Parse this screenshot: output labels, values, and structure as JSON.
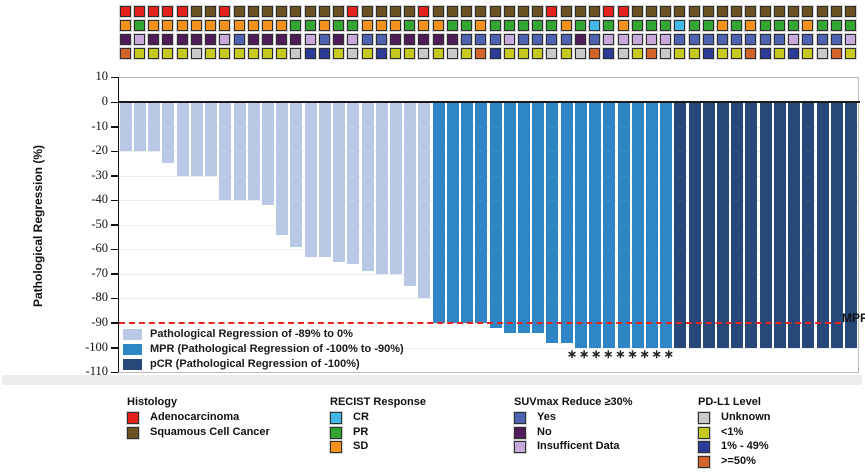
{
  "figure": {
    "y_axis_title": "Pathological Regression (%)",
    "mpr_line_label": "MPR",
    "asterisk_symbol": "∗",
    "asterisk_count": 9
  },
  "tracks": {
    "rows": [
      {
        "label": "Histology",
        "cells": "AAAAASSASSSSSSSSASSSSASSSSSSSSASSSAASSSSSSSSSSSSSSSS",
        "colors": {
          "A": "#E3201B",
          "S": "#6C5223"
        },
        "code_meaning": {
          "A": "Adenocarcinoma",
          "S": "Squamous Cell Cancer"
        }
      },
      {
        "label": "RECIST Response",
        "cells": "SPSSSSSSSSSSPPSPPSSSPSSPPSPPPPPSPCPSPPPCPPSPSPPPSPPP",
        "colors": {
          "C": "#41B8E8",
          "P": "#33A532",
          "S": "#F5921E"
        },
        "code_meaning": {
          "C": "CR",
          "P": "PR",
          "S": "SD"
        }
      },
      {
        "label": "SUVmax Reduce ≥30%",
        "cells": "NINNNNNIYNNNNIYNIYYNNNNNYYYIYYYYNYIIIIIYYYYYYYYIYYYI",
        "colors": {
          "Y": "#4F63B5",
          "N": "#4F1B59",
          "I": "#C7AADB"
        },
        "code_meaning": {
          "Y": "Yes",
          "N": "No",
          "I": "Insufficent Data"
        }
      },
      {
        "label": "PD-L1 Level",
        "cells": "HLLLLULLLLLLUMMLULMLLULULHMLLLULUHMULHULLMLLHMLMLUHL",
        "colors": {
          "U": "#C9C9C9",
          "L": "#C5C81F",
          "M": "#2B3B97",
          "H": "#D2642B"
        },
        "code_meaning": {
          "U": "Unknown",
          "L": "<1%",
          "M": "1% - 49%",
          "H": ">=50%"
        }
      }
    ]
  },
  "chart_data": {
    "type": "bar",
    "title": "",
    "xlabel": "",
    "ylabel": "Pathological Regression (%)",
    "ylim": [
      -110,
      10
    ],
    "yticks": [
      10,
      0,
      -10,
      -20,
      -30,
      -40,
      -50,
      -60,
      -70,
      -80,
      -90,
      -100,
      -110
    ],
    "grid": true,
    "n_patients": 52,
    "values": [
      -20,
      -20,
      -20,
      -25,
      -30,
      -30,
      -30,
      -40,
      -40,
      -40,
      -42,
      -54,
      -59,
      -63,
      -63,
      -65,
      -66,
      -69,
      -70,
      -70,
      -75,
      -80,
      -90,
      -90,
      -90,
      -90,
      -92,
      -94,
      -94,
      -94,
      -98,
      -98,
      -100,
      -100,
      -100,
      -100,
      -100,
      -100,
      -100,
      -100,
      -100,
      -100,
      -100,
      -100,
      -100,
      -100,
      -100,
      -100,
      -100,
      -100,
      -100,
      -100
    ],
    "group_spans": [
      {
        "group": "PR89",
        "count": 22
      },
      {
        "group": "MPR",
        "count": 17
      },
      {
        "group": "pCR",
        "count": 13
      }
    ],
    "group_colors": {
      "PR89": "#B9C9E5",
      "MPR": "#2E86C6",
      "pCR": "#274878"
    },
    "reference_line": {
      "value": -90,
      "label": "MPR",
      "color": "#E8251F"
    },
    "legend_position": "inside-bottom-left",
    "plot_legend": [
      {
        "group": "PR89",
        "label": "Pathological Regression of -89% to 0%"
      },
      {
        "group": "MPR",
        "label": "MPR (Pathological Regression of -100% to -90%)"
      },
      {
        "group": "pCR",
        "label": "pCR (Pathological Regression of -100%)"
      }
    ]
  },
  "legends": [
    {
      "title": "Histology",
      "items": [
        {
          "label": "Adenocarcinoma",
          "color": "#E3201B"
        },
        {
          "label": "Squamous Cell Cancer",
          "color": "#6C5223"
        }
      ]
    },
    {
      "title": "RECIST Response",
      "items": [
        {
          "label": "CR",
          "color": "#41B8E8"
        },
        {
          "label": "PR",
          "color": "#33A532"
        },
        {
          "label": "SD",
          "color": "#F5921E"
        }
      ]
    },
    {
      "title": "SUVmax Reduce ≥30%",
      "items": [
        {
          "label": "Yes",
          "color": "#4F63B5"
        },
        {
          "label": "No",
          "color": "#4F1B59"
        },
        {
          "label": "Insufficent Data",
          "color": "#C7AADB"
        }
      ]
    },
    {
      "title": "PD-L1 Level",
      "items": [
        {
          "label": "Unknown",
          "color": "#C9C9C9"
        },
        {
          "label": "<1%",
          "color": "#C5C81F"
        },
        {
          "label": "1% - 49%",
          "color": "#2B3B97"
        },
        {
          "label": ">=50%",
          "color": "#D2642B"
        }
      ]
    }
  ]
}
